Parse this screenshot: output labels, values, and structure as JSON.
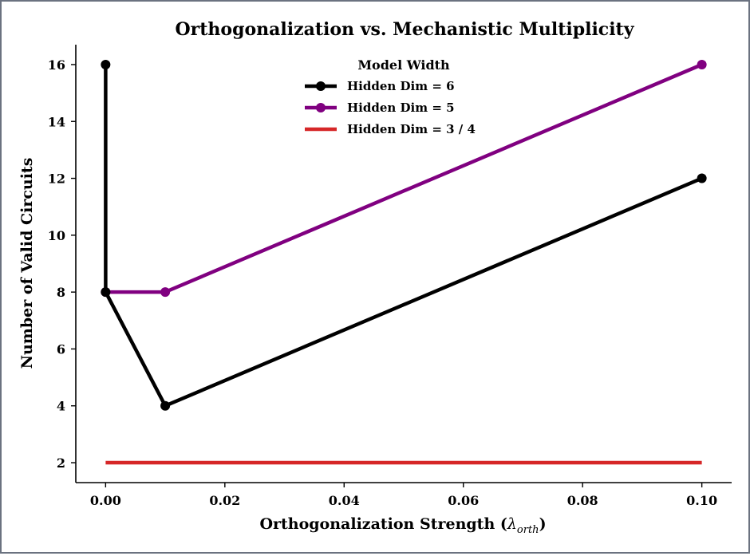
{
  "chart_data": {
    "type": "line",
    "title": "Orthogonalization vs. Mechanistic Multiplicity",
    "xlabel_main": "Orthogonalization Strength (",
    "xlabel_symbol": "λ",
    "xlabel_sub": "orth",
    "xlabel_end": ")",
    "ylabel": "Number of Valid Circuits",
    "xlim": [
      -0.005,
      0.105
    ],
    "ylim": [
      1.3,
      16.7
    ],
    "xticks": [
      0.0,
      0.02,
      0.04,
      0.06,
      0.08,
      0.1
    ],
    "xtick_labels": [
      "0.00",
      "0.02",
      "0.04",
      "0.06",
      "0.08",
      "0.10"
    ],
    "yticks": [
      2,
      4,
      6,
      8,
      10,
      12,
      14,
      16
    ],
    "ytick_labels": [
      "2",
      "4",
      "6",
      "8",
      "10",
      "12",
      "14",
      "16"
    ],
    "legend": {
      "title": "Model Width",
      "position": "top-center"
    },
    "series": [
      {
        "name": "Hidden Dim = 6",
        "color": "#000000",
        "markers": true,
        "x": [
          0.0,
          0.0,
          0.01,
          0.1
        ],
        "y": [
          16,
          8,
          4,
          12
        ]
      },
      {
        "name": "Hidden Dim = 5",
        "color": "#800080",
        "markers": true,
        "x": [
          0.0,
          0.01,
          0.1
        ],
        "y": [
          8,
          8,
          16
        ]
      },
      {
        "name": "Hidden Dim = 3 / 4",
        "color": "#d62728",
        "markers": false,
        "x": [
          0.0,
          0.1
        ],
        "y": [
          2,
          2
        ]
      }
    ]
  }
}
